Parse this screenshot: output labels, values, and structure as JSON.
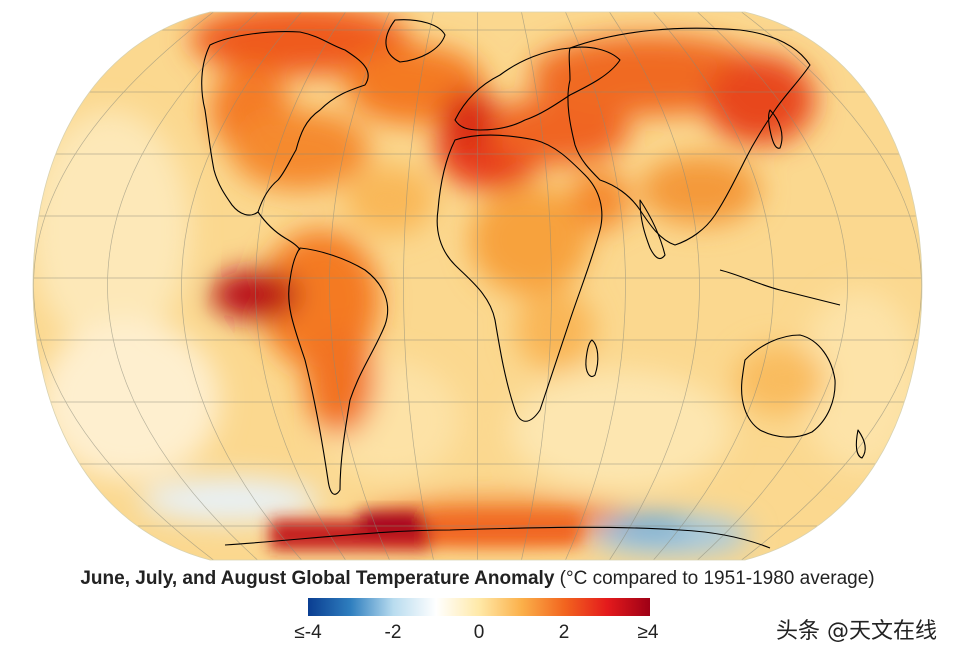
{
  "map": {
    "projection": "robinson",
    "coastline_color": "#000000",
    "graticule_color": "#8a8a7a"
  },
  "legend": {
    "title_bold": "June, July, and August Global Temperature Anomaly",
    "title_rest": " (°C compared to 1951-1980 average)",
    "colorscale": [
      "#0a3d91",
      "#2f7fbf",
      "#b9dcef",
      "#ffffff",
      "#ffe9a8",
      "#fbb04a",
      "#f2651f",
      "#e41a1c",
      "#9e0016"
    ],
    "ticks": [
      "≤-4",
      "-2",
      "0",
      "2",
      "≥4"
    ]
  },
  "watermark": "头条 @天文在线"
}
